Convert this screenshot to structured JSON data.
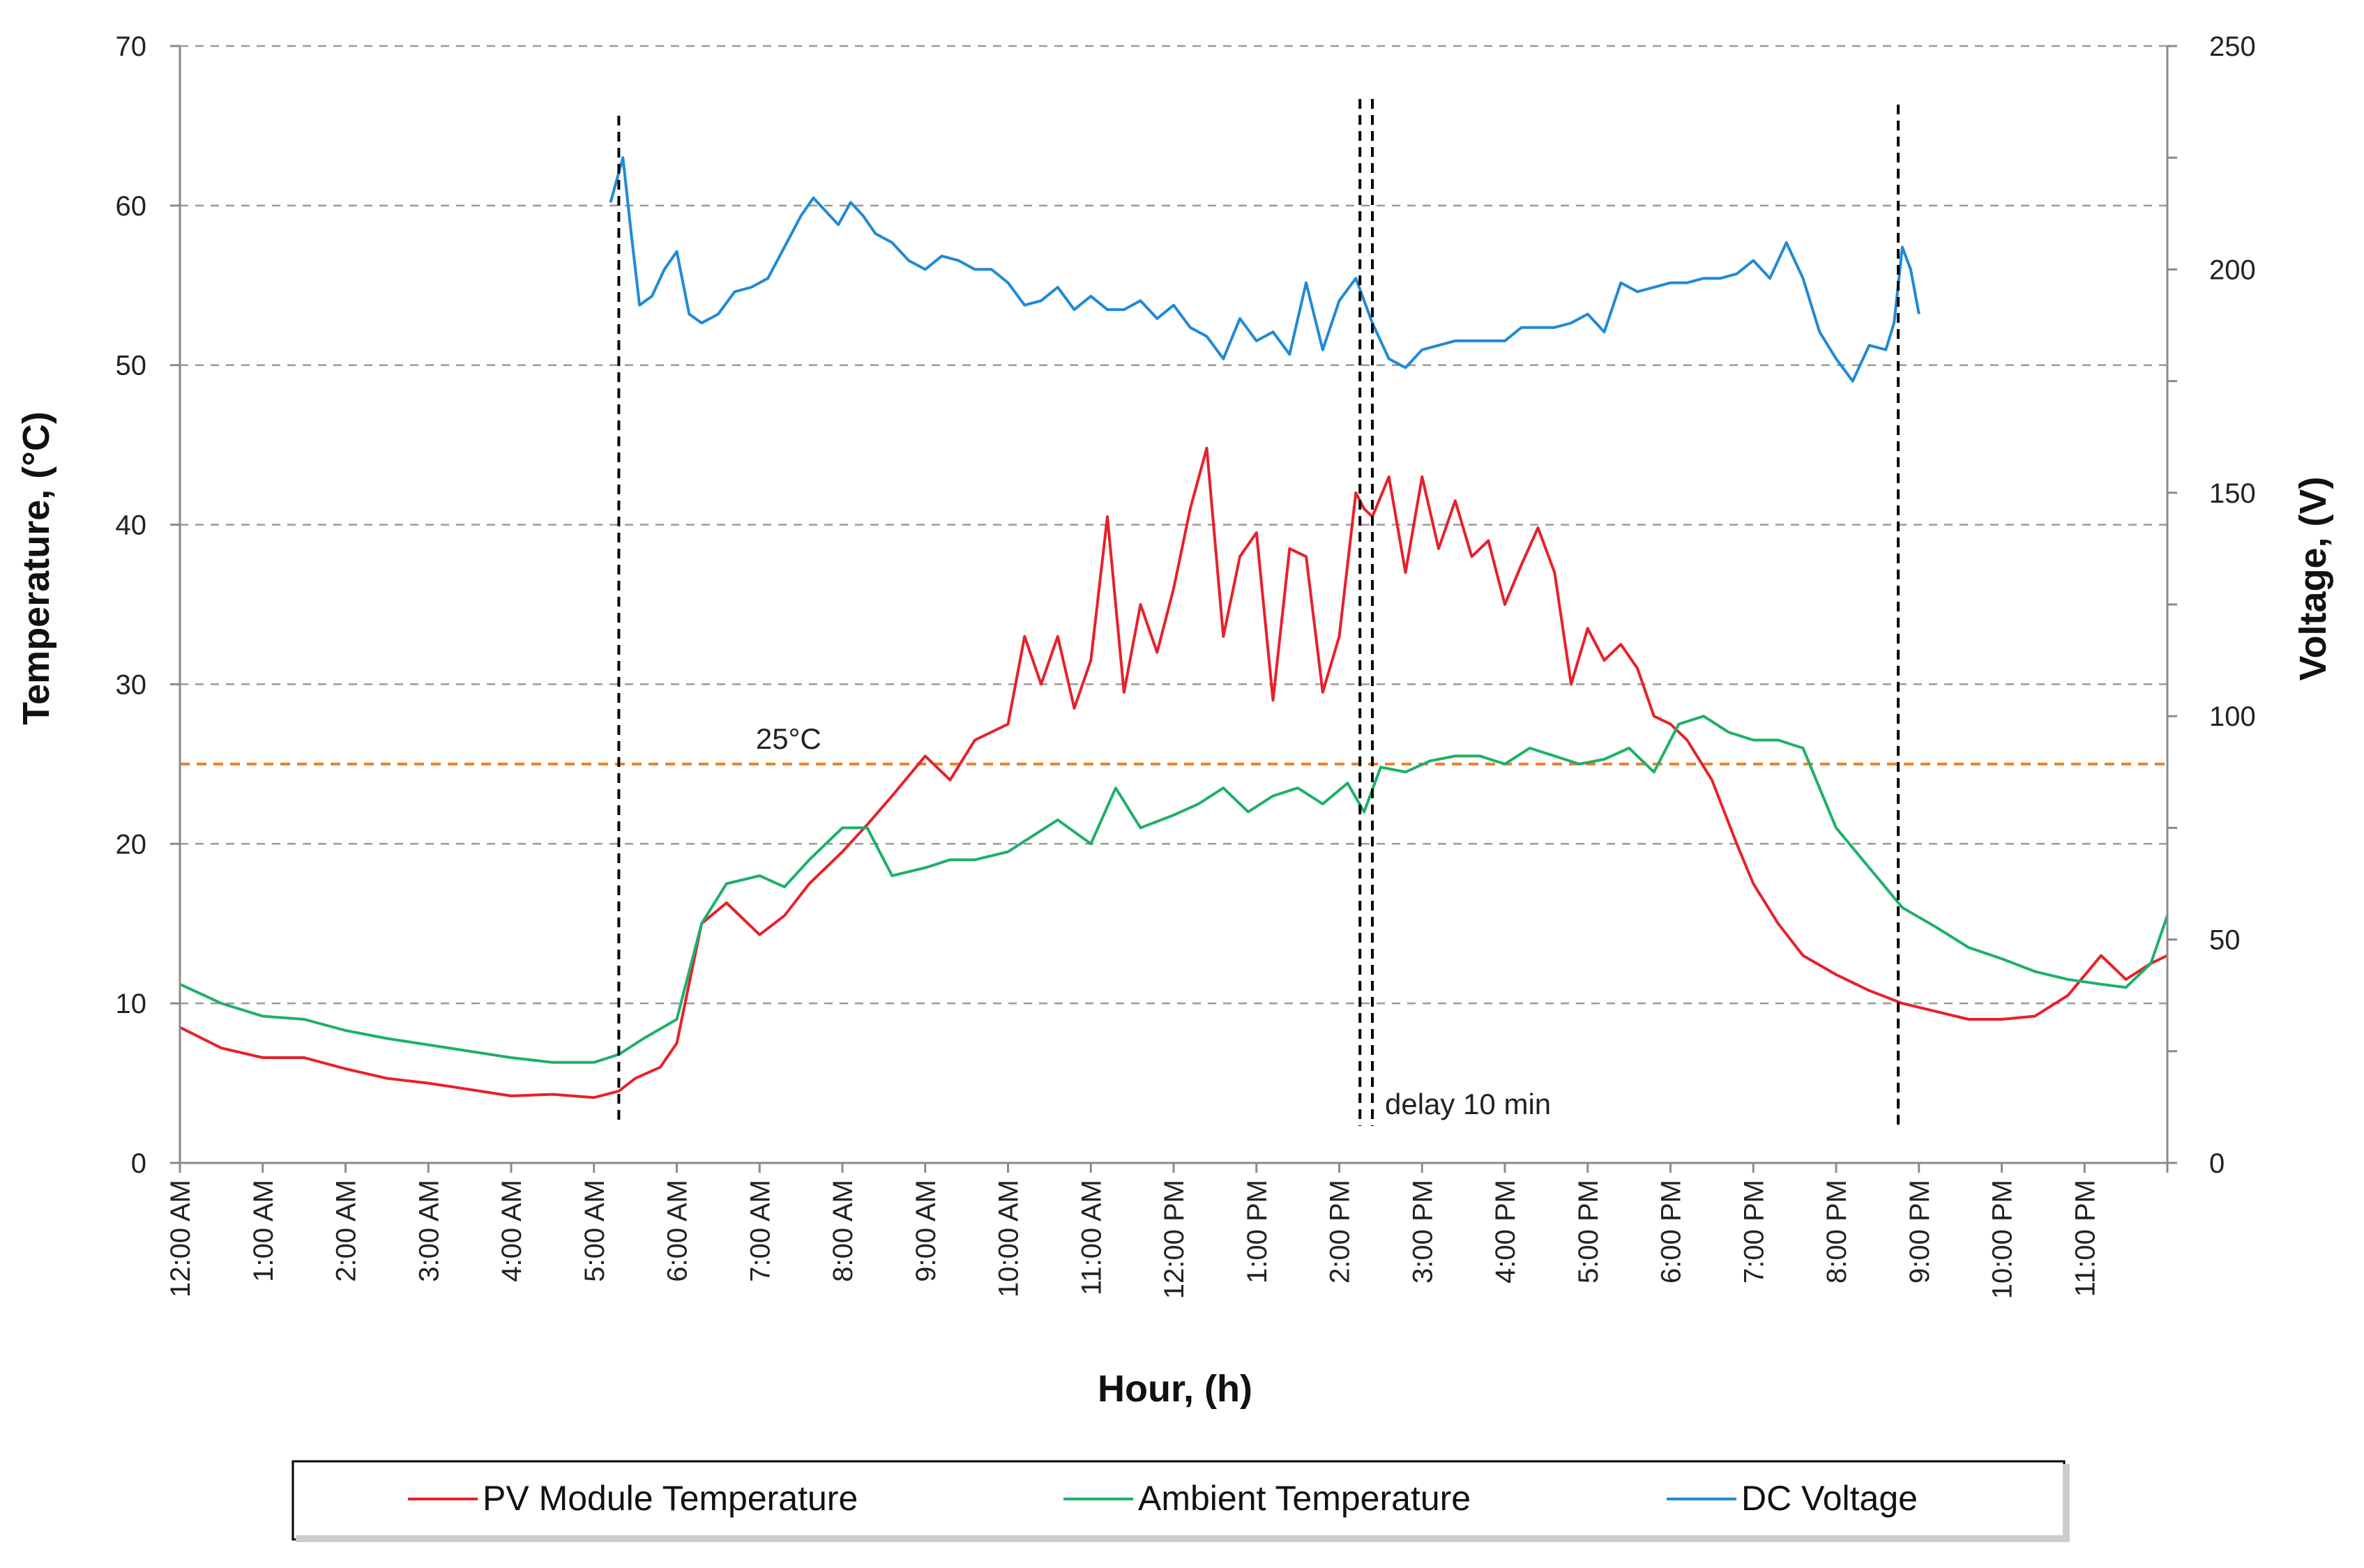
{
  "chart_data": {
    "type": "line",
    "title": "",
    "xlabel": "Hour, (h)",
    "ylabel_left": "Temperature, (°C)",
    "ylabel_right": "Voltage, (V)",
    "xlim": [
      0,
      24
    ],
    "ylim_left": [
      0,
      70
    ],
    "ylim_right": [
      0,
      250
    ],
    "yticks_left": [
      0,
      10,
      20,
      30,
      40,
      50,
      60,
      70
    ],
    "yticks_right": [
      0,
      50,
      100,
      150,
      200,
      250
    ],
    "x_tick_labels": [
      "12:00 AM",
      "1:00 AM",
      "2:00 AM",
      "3:00 AM",
      "4:00 AM",
      "5:00 AM",
      "6:00 AM",
      "7:00 AM",
      "8:00 AM",
      "9:00 AM",
      "10:00 AM",
      "11:00 AM",
      "12:00 PM",
      "1:00 PM",
      "2:00 PM",
      "3:00 PM",
      "4:00 PM",
      "5:00 PM",
      "6:00 PM",
      "7:00 PM",
      "8:00 PM",
      "9:00 PM",
      "10:00 PM",
      "11:00 PM"
    ],
    "grid": "horizontal dashed",
    "legend_position": "bottom",
    "reference_line": {
      "value": 25,
      "axis": "left",
      "color": "#f07f1f",
      "label": "25°C"
    },
    "vertical_markers": [
      {
        "x": 5.3,
        "label": ""
      },
      {
        "x": 14.25,
        "label": ""
      },
      {
        "x": 14.4,
        "label": "delay 10 min"
      },
      {
        "x": 20.75,
        "label": ""
      }
    ],
    "series": [
      {
        "name": "PV Module Temperature",
        "axis": "left",
        "color": "#e8202a",
        "x": [
          0,
          0.5,
          1,
          1.5,
          2,
          2.5,
          3,
          3.5,
          4,
          4.5,
          5,
          5.3,
          5.5,
          5.8,
          6,
          6.3,
          6.6,
          7,
          7.3,
          7.6,
          8,
          8.3,
          8.6,
          9,
          9.3,
          9.6,
          10,
          10.2,
          10.4,
          10.6,
          10.8,
          11,
          11.2,
          11.4,
          11.6,
          11.8,
          12,
          12.2,
          12.4,
          12.6,
          12.8,
          13,
          13.2,
          13.4,
          13.6,
          13.8,
          14,
          14.2,
          14.3,
          14.4,
          14.6,
          14.8,
          15,
          15.2,
          15.4,
          15.6,
          15.8,
          16,
          16.2,
          16.4,
          16.6,
          16.8,
          17,
          17.2,
          17.4,
          17.6,
          17.8,
          18,
          18.2,
          18.5,
          18.8,
          19,
          19.3,
          19.6,
          20,
          20.4,
          20.8,
          21.2,
          21.6,
          22,
          22.4,
          22.8,
          23.2,
          23.5,
          23.8,
          24
        ],
        "values": [
          8.5,
          7.2,
          6.6,
          6.6,
          5.9,
          5.3,
          5.0,
          4.6,
          4.2,
          4.3,
          4.1,
          4.5,
          5.3,
          6.0,
          7.5,
          15.0,
          16.3,
          14.3,
          15.5,
          17.5,
          19.5,
          21.2,
          23.0,
          25.5,
          24.0,
          26.5,
          27.5,
          33.0,
          30.0,
          33.0,
          28.5,
          31.5,
          40.5,
          29.5,
          35.0,
          32.0,
          36.0,
          41.0,
          44.8,
          33.0,
          38.0,
          39.5,
          29.0,
          38.5,
          38.0,
          29.5,
          33.0,
          42.0,
          41.0,
          40.5,
          43.0,
          37.0,
          43.0,
          38.5,
          41.5,
          38.0,
          39.0,
          35.0,
          37.5,
          39.8,
          37.0,
          30.0,
          33.5,
          31.5,
          32.5,
          31.0,
          28.0,
          27.5,
          26.5,
          24.0,
          20.0,
          17.5,
          15.0,
          13.0,
          11.8,
          10.8,
          10.0,
          9.5,
          9.0,
          9.0,
          9.2,
          10.5,
          13.0,
          11.5,
          12.5,
          13.0
        ]
      },
      {
        "name": "Ambient Temperature",
        "axis": "left",
        "color": "#1db06a",
        "x": [
          0,
          0.5,
          1,
          1.5,
          2,
          2.5,
          3,
          3.5,
          4,
          4.5,
          5,
          5.3,
          5.6,
          6,
          6.3,
          6.6,
          7,
          7.3,
          7.6,
          8,
          8.3,
          8.6,
          9,
          9.3,
          9.6,
          10,
          10.3,
          10.6,
          11,
          11.3,
          11.6,
          12,
          12.3,
          12.6,
          12.9,
          13.2,
          13.5,
          13.8,
          14.1,
          14.3,
          14.5,
          14.8,
          15.1,
          15.4,
          15.7,
          16,
          16.3,
          16.6,
          16.9,
          17.2,
          17.5,
          17.8,
          18.1,
          18.4,
          18.7,
          19,
          19.3,
          19.6,
          20,
          20.4,
          20.8,
          21.2,
          21.6,
          22,
          22.4,
          22.8,
          23.2,
          23.5,
          23.8,
          24
        ],
        "values": [
          11.2,
          10.0,
          9.2,
          9.0,
          8.3,
          7.8,
          7.4,
          7.0,
          6.6,
          6.3,
          6.3,
          6.8,
          7.8,
          9.0,
          15.0,
          17.5,
          18.0,
          17.3,
          19.0,
          21.0,
          21.0,
          18.0,
          18.5,
          19.0,
          19.0,
          19.5,
          20.5,
          21.5,
          20.0,
          23.5,
          21.0,
          21.8,
          22.5,
          23.5,
          22.0,
          23.0,
          23.5,
          22.5,
          23.8,
          22.0,
          24.8,
          24.5,
          25.2,
          25.5,
          25.5,
          25.0,
          26.0,
          25.5,
          25.0,
          25.3,
          26.0,
          24.5,
          27.5,
          28.0,
          27.0,
          26.5,
          26.5,
          26.0,
          21.0,
          18.5,
          16.0,
          14.8,
          13.5,
          12.8,
          12.0,
          11.5,
          11.2,
          11.0,
          12.5,
          15.5
        ]
      },
      {
        "name": "DC Voltage",
        "axis": "right",
        "color": "#1f8ad6",
        "x": [
          5.2,
          5.35,
          5.45,
          5.55,
          5.7,
          5.85,
          6.0,
          6.15,
          6.3,
          6.5,
          6.7,
          6.9,
          7.1,
          7.3,
          7.5,
          7.65,
          7.8,
          7.95,
          8.1,
          8.25,
          8.4,
          8.6,
          8.8,
          9.0,
          9.2,
          9.4,
          9.6,
          9.8,
          10.0,
          10.2,
          10.4,
          10.6,
          10.8,
          11.0,
          11.2,
          11.4,
          11.6,
          11.8,
          12.0,
          12.2,
          12.4,
          12.6,
          12.8,
          13.0,
          13.2,
          13.4,
          13.6,
          13.8,
          14.0,
          14.2,
          14.4,
          14.6,
          14.8,
          15.0,
          15.2,
          15.4,
          15.6,
          15.8,
          16.0,
          16.2,
          16.4,
          16.6,
          16.8,
          17.0,
          17.2,
          17.4,
          17.6,
          17.8,
          18.0,
          18.2,
          18.4,
          18.6,
          18.8,
          19.0,
          19.2,
          19.4,
          19.6,
          19.8,
          20.0,
          20.2,
          20.4,
          20.6,
          20.7,
          20.8,
          20.9,
          21.0
        ],
        "values": [
          215,
          225,
          208,
          192,
          194,
          200,
          204,
          190,
          188,
          190,
          195,
          196,
          198,
          205,
          212,
          216,
          213,
          210,
          215,
          212,
          208,
          206,
          202,
          200,
          203,
          202,
          200,
          200,
          197,
          192,
          193,
          196,
          191,
          194,
          191,
          191,
          193,
          189,
          192,
          187,
          185,
          180,
          189,
          184,
          186,
          181,
          197,
          182,
          193,
          198,
          188,
          180,
          178,
          182,
          183,
          184,
          184,
          184,
          184,
          187,
          187,
          187,
          188,
          190,
          186,
          197,
          195,
          196,
          197,
          197,
          198,
          198,
          199,
          202,
          198,
          206,
          198,
          186,
          180,
          175,
          183,
          182,
          188,
          205,
          200,
          190
        ]
      }
    ]
  },
  "legend": {
    "items": [
      {
        "label": "PV Module Temperature",
        "color": "#e8202a"
      },
      {
        "label": "Ambient Temperature",
        "color": "#1db06a"
      },
      {
        "label": "DC Voltage",
        "color": "#1f8ad6"
      }
    ]
  }
}
